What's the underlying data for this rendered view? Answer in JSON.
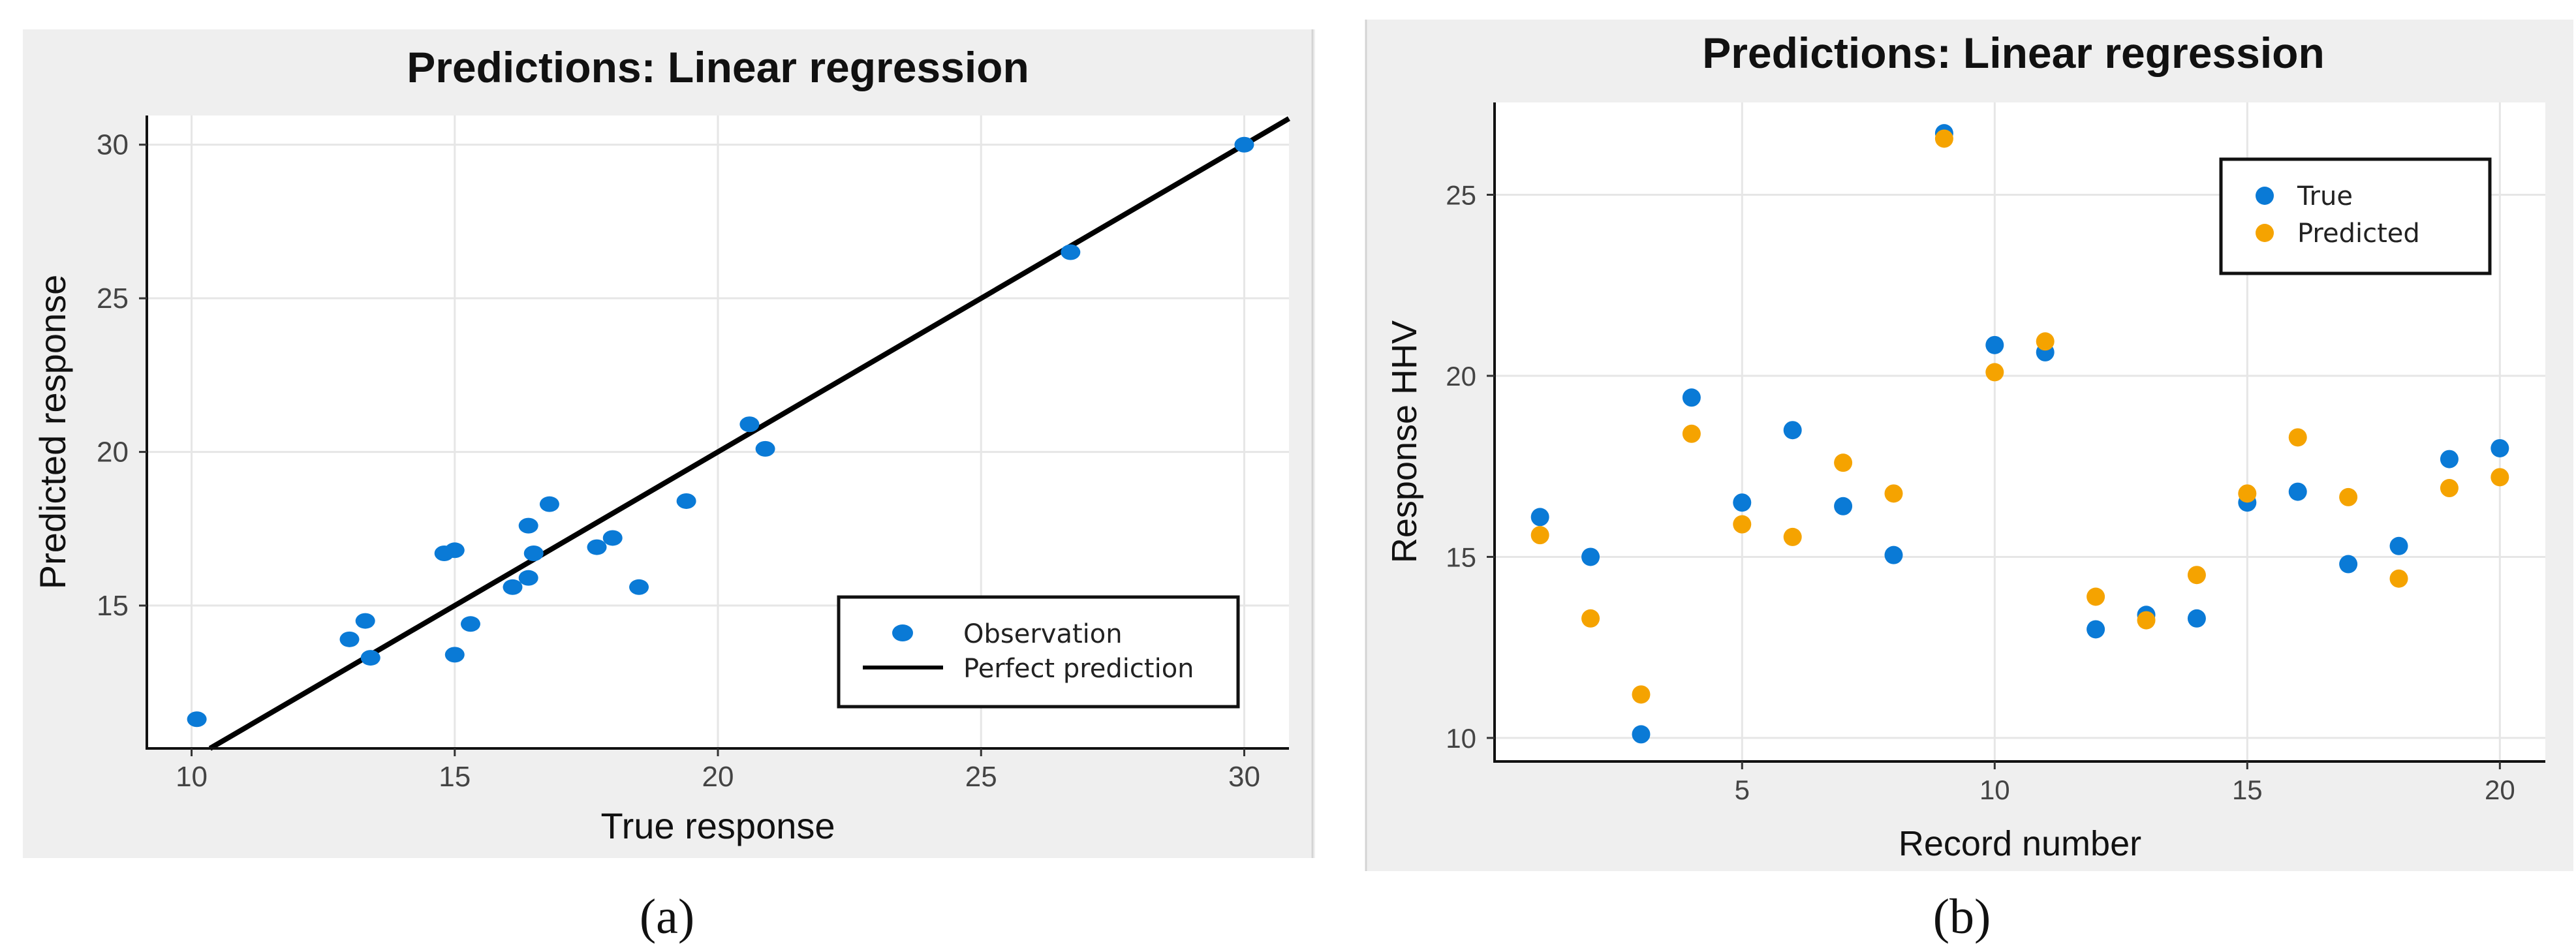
{
  "chart_data": [
    {
      "id": "a",
      "type": "scatter",
      "title": "Predictions: Linear regression",
      "xlabel": "True response",
      "ylabel": "Predicted response",
      "xlim": [
        9.15,
        30.85
      ],
      "ylim": [
        10.35,
        30.95
      ],
      "xticks": [
        10,
        15,
        20,
        25,
        30
      ],
      "yticks": [
        15,
        20,
        25,
        30
      ],
      "grid": true,
      "legend_position": "bottom-right",
      "caption": "(a)",
      "colors": {
        "observation": "#0a7ad6",
        "perfect": "#000000"
      },
      "series": [
        {
          "name": "Observation",
          "kind": "points",
          "points": [
            [
              10.1,
              11.3
            ],
            [
              13.0,
              13.9
            ],
            [
              13.3,
              14.5
            ],
            [
              13.4,
              13.3
            ],
            [
              14.8,
              16.7
            ],
            [
              15.0,
              16.8
            ],
            [
              15.0,
              13.4
            ],
            [
              15.3,
              14.4
            ],
            [
              16.1,
              15.6
            ],
            [
              16.4,
              17.6
            ],
            [
              16.4,
              15.9
            ],
            [
              16.5,
              16.7
            ],
            [
              16.8,
              18.3
            ],
            [
              17.7,
              16.9
            ],
            [
              18.0,
              17.2
            ],
            [
              18.5,
              15.6
            ],
            [
              19.4,
              18.4
            ],
            [
              20.6,
              20.9
            ],
            [
              20.9,
              20.1
            ],
            [
              26.7,
              26.5
            ],
            [
              30.0,
              30.0
            ]
          ]
        },
        {
          "name": "Perfect prediction",
          "kind": "line",
          "points": [
            [
              10.0,
              10.0
            ],
            [
              31.2,
              31.2
            ]
          ]
        }
      ]
    },
    {
      "id": "b",
      "type": "scatter",
      "title": "Predictions: Linear regression",
      "xlabel": "Record number",
      "ylabel": "Response HHV",
      "xlim": [
        0.1,
        20.9
      ],
      "ylim": [
        9.35,
        27.55
      ],
      "xticks": [
        5,
        10,
        15,
        20
      ],
      "yticks": [
        10,
        15,
        20,
        25
      ],
      "grid": true,
      "legend_position": "top-right",
      "caption": "(b)",
      "colors": {
        "true": "#0a7ad6",
        "predicted": "#f5a300"
      },
      "x": [
        1,
        2,
        3,
        4,
        5,
        6,
        7,
        8,
        9,
        10,
        11,
        12,
        13,
        14,
        15,
        16,
        17,
        18,
        19,
        20
      ],
      "series": [
        {
          "name": "True",
          "values": [
            16.1,
            15.0,
            10.1,
            19.4,
            16.5,
            18.5,
            16.4,
            15.05,
            26.7,
            20.85,
            20.65,
            13.0,
            13.4,
            13.3,
            16.5,
            16.8,
            14.8,
            15.3,
            17.7,
            18.0
          ]
        },
        {
          "name": "Predicted",
          "values": [
            15.6,
            13.3,
            11.2,
            18.4,
            15.9,
            15.55,
            17.6,
            16.75,
            26.55,
            20.1,
            20.95,
            13.9,
            13.25,
            14.5,
            16.75,
            18.3,
            16.65,
            14.4,
            16.9,
            17.2
          ]
        }
      ]
    }
  ]
}
